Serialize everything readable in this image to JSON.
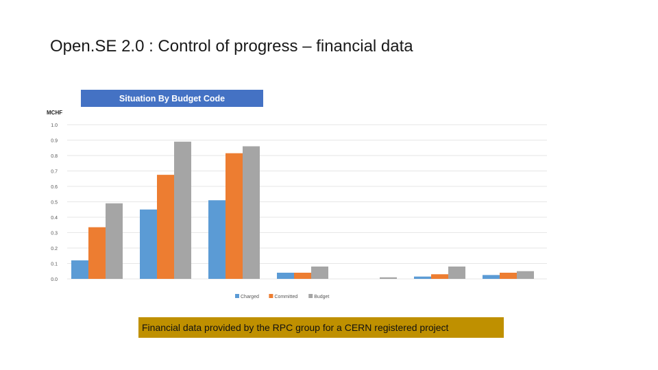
{
  "slide": {
    "title": "Open.SE 2.0 : Control of progress – financial data",
    "caption": "Financial data  provided by the RPC group  for a CERN registered project"
  },
  "colors": {
    "banner": "#4472c4",
    "caption_band": "#bf9000",
    "charged": "#5b9bd5",
    "committed": "#ed7d31",
    "budget": "#a5a5a5",
    "grid": "#e6e6e6"
  },
  "chart_data": {
    "type": "bar",
    "title": "Situation By Budget Code",
    "ylabel": "MCHF",
    "xlabel": "",
    "ylim": [
      0,
      1.0
    ],
    "yticks": [
      "0.0",
      "0.1",
      "0.2",
      "0.3",
      "0.4",
      "0.5",
      "0.6",
      "0.7",
      "0.8",
      "0.9",
      "1.0"
    ],
    "categories": [
      "",
      "",
      "",
      "",
      "",
      "",
      ""
    ],
    "series": [
      {
        "name": "Charged",
        "color": "#5b9bd5",
        "values": [
          0.12,
          0.45,
          0.51,
          0.04,
          0.0,
          0.015,
          0.025
        ]
      },
      {
        "name": "Committed",
        "color": "#ed7d31",
        "values": [
          0.335,
          0.675,
          0.815,
          0.04,
          0.0,
          0.03,
          0.04
        ]
      },
      {
        "name": "Budget",
        "color": "#a5a5a5",
        "values": [
          0.49,
          0.89,
          0.86,
          0.08,
          0.01,
          0.08,
          0.05
        ]
      }
    ],
    "legend": "bottom-center",
    "grid": true
  }
}
